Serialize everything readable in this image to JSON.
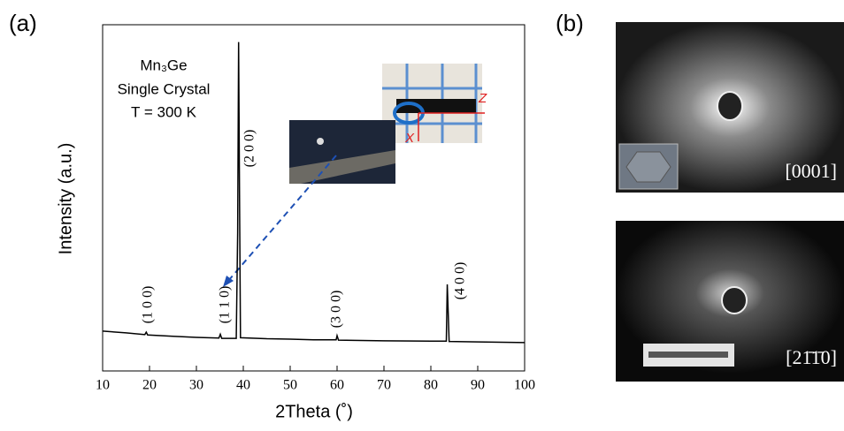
{
  "panels": {
    "a": "(a)",
    "b": "(b)"
  },
  "chart_data": {
    "type": "line",
    "xlabel": "2Theta (˚)",
    "ylabel": "Intensity (a.u.)",
    "sample_text": [
      "Mn₃Ge",
      "Single Crystal",
      "T = 300 K"
    ],
    "peak_labels": [
      "(1 0 0)",
      "(1 1 0)",
      "(2 0 0)",
      "(3 0 0)",
      "(4 0 0)"
    ],
    "inset_labels": [
      "Z",
      "X"
    ],
    "xlim": [
      10,
      100
    ],
    "xticks": [
      10,
      20,
      30,
      40,
      50,
      60,
      70,
      80,
      90,
      100
    ],
    "ylim": [
      0,
      100
    ],
    "series": [
      {
        "color": "#000000",
        "x": [
          10,
          15,
          19,
          19.3,
          19.6,
          25,
          30,
          34.8,
          35.1,
          35.4,
          38.5,
          38.8,
          39.0,
          39.2,
          39.4,
          45,
          50,
          55,
          59.8,
          60,
          60.3,
          70,
          80,
          83.3,
          83.5,
          83.7,
          83.9,
          90,
          100
        ],
        "values": [
          11.5,
          11,
          10.5,
          11.2,
          10.4,
          10,
          9.7,
          9.5,
          10.6,
          9.4,
          9.4,
          40,
          95,
          50,
          9.6,
          9.3,
          9.2,
          9.0,
          9.0,
          10.2,
          8.9,
          8.7,
          8.6,
          8.6,
          25,
          17,
          8.5,
          8.4,
          8.2
        ]
      }
    ]
  },
  "laue": [
    "[0001]",
    "[21̄1̄0]"
  ]
}
